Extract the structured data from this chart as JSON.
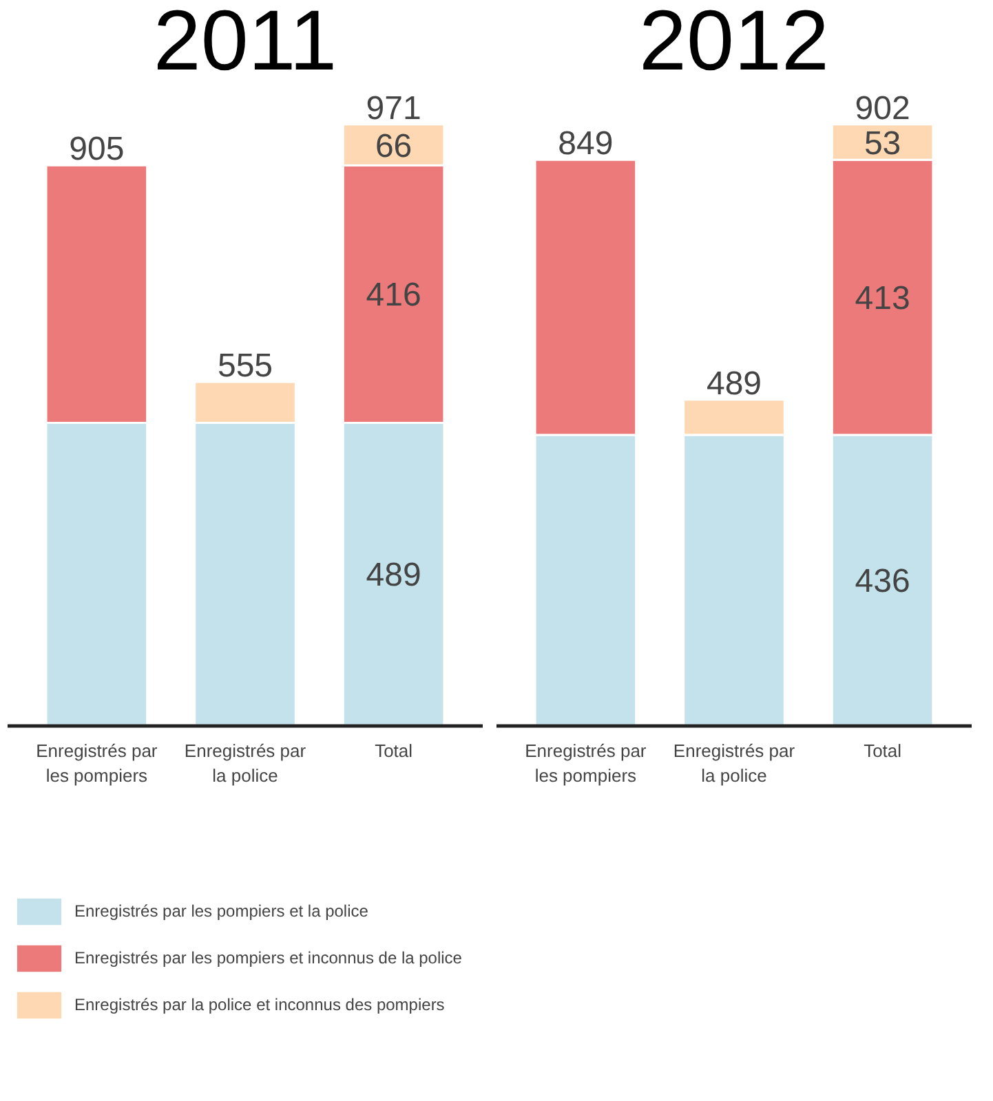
{
  "chart_data": [
    {
      "type": "bar",
      "title": "2011",
      "stacked": true,
      "legend": "bottom",
      "tick_labels": "x",
      "categories": [
        "Enregistrés par les pompiers",
        "Enregistrés par la police",
        "Total"
      ],
      "series": [
        {
          "name": "Enregistrés par les pompiers et la police",
          "color": "#c4e2eb",
          "values": [
            489,
            489,
            489
          ],
          "value_labels": [
            null,
            null,
            "489"
          ]
        },
        {
          "name": "Enregistrés par les pompiers et inconnus de la police",
          "color": "#ec7a7a",
          "values": [
            416,
            null,
            416
          ],
          "value_labels": [
            null,
            null,
            "416"
          ]
        },
        {
          "name": "Enregistrés par la police et inconnus des pompiers",
          "color": "#fdd8b2",
          "values": [
            null,
            66,
            66
          ],
          "value_labels": [
            null,
            null,
            "66"
          ]
        }
      ],
      "totals": [
        "905",
        "555",
        "971"
      ]
    },
    {
      "type": "bar",
      "title": "2012",
      "stacked": true,
      "tick_labels": "x",
      "categories": [
        "Enregistrés par les pompiers",
        "Enregistrés par la police",
        "Total"
      ],
      "series": [
        {
          "color": "#c4e2eb",
          "values": [
            436,
            436,
            436
          ],
          "value_labels": [
            null,
            null,
            "436"
          ]
        },
        {
          "color": "#ec7a7a",
          "values": [
            413,
            null,
            413
          ],
          "value_labels": [
            null,
            null,
            "413"
          ]
        },
        {
          "color": "#fdd8b2",
          "values": [
            null,
            53,
            53
          ],
          "value_labels": [
            null,
            null,
            "53"
          ]
        }
      ],
      "totals": [
        "849",
        "489",
        "902"
      ]
    }
  ]
}
